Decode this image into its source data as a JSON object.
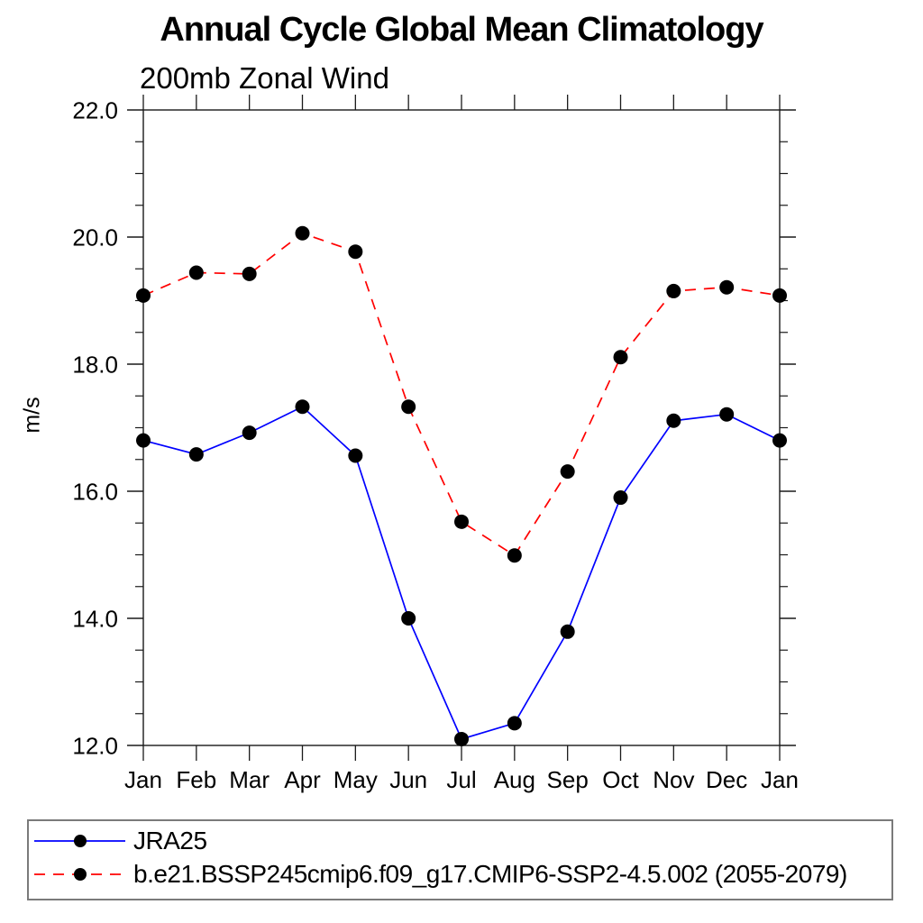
{
  "chart_data": {
    "type": "line",
    "title": "Annual Cycle Global Mean Climatology",
    "subtitle": "200mb Zonal Wind",
    "xlabel": "",
    "ylabel": "m/s",
    "categories": [
      "Jan",
      "Feb",
      "Mar",
      "Apr",
      "May",
      "Jun",
      "Jul",
      "Aug",
      "Sep",
      "Oct",
      "Nov",
      "Dec",
      "Jan"
    ],
    "ylim": [
      12.0,
      22.0
    ],
    "ytick_major": [
      12.0,
      14.0,
      16.0,
      18.0,
      20.0,
      22.0
    ],
    "ytick_minor_step": 0.5,
    "grid": false,
    "legend_position": "bottom",
    "frame_color": "#1a1a1a",
    "marker_radius_note": "black filled circles on both series",
    "series": [
      {
        "name": "JRA25",
        "color": "#0000ff",
        "line_style": "solid",
        "marker": "circle",
        "marker_color": "#000000",
        "values": [
          16.8,
          16.58,
          16.92,
          17.33,
          16.56,
          14.0,
          12.1,
          12.35,
          13.79,
          15.9,
          17.11,
          17.21,
          16.8
        ]
      },
      {
        "name": "b.e21.BSSP245cmip6.f09_g17.CMIP6-SSP2-4.5.002 (2055-2079)",
        "color": "#ff0000",
        "line_style": "dashed",
        "marker": "circle",
        "marker_color": "#000000",
        "values": [
          19.08,
          19.44,
          19.42,
          20.06,
          19.77,
          17.33,
          15.52,
          14.99,
          16.31,
          18.11,
          19.15,
          19.21,
          19.08
        ]
      }
    ]
  }
}
